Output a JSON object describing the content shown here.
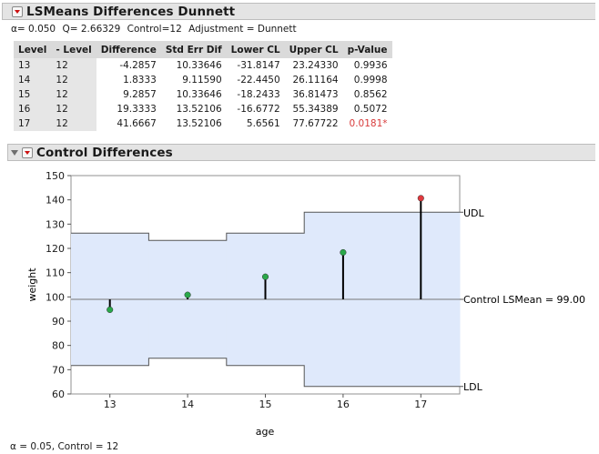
{
  "lsmeans": {
    "title": "LSMeans Differences Dunnett",
    "info": {
      "alpha": "α=  0.050",
      "q": "Q=  2.66329",
      "control": "Control=12",
      "adjustment": "Adjustment = Dunnett"
    },
    "columns": [
      "Level",
      "- Level",
      "Difference",
      "Std Err Dif",
      "Lower CL",
      "Upper CL",
      "p-Value"
    ],
    "rows": [
      {
        "level": "13",
        "minus_level": "12",
        "difference": "-4.2857",
        "std_err": "10.33646",
        "lower_cl": "-31.8147",
        "upper_cl": "23.24330",
        "p_value": "0.9936",
        "significant": false
      },
      {
        "level": "14",
        "minus_level": "12",
        "difference": "1.8333",
        "std_err": "9.11590",
        "lower_cl": "-22.4450",
        "upper_cl": "26.11164",
        "p_value": "0.9998",
        "significant": false
      },
      {
        "level": "15",
        "minus_level": "12",
        "difference": "9.2857",
        "std_err": "10.33646",
        "lower_cl": "-18.2433",
        "upper_cl": "36.81473",
        "p_value": "0.8562",
        "significant": false
      },
      {
        "level": "16",
        "minus_level": "12",
        "difference": "19.3333",
        "std_err": "13.52106",
        "lower_cl": "-16.6772",
        "upper_cl": "55.34389",
        "p_value": "0.5072",
        "significant": false
      },
      {
        "level": "17",
        "minus_level": "12",
        "difference": "41.6667",
        "std_err": "13.52106",
        "lower_cl": "5.6561",
        "upper_cl": "77.67722",
        "p_value": "0.0181*",
        "significant": true
      }
    ]
  },
  "control_diff": {
    "title": "Control Differences",
    "footer": "α = 0.05, Control = 12"
  },
  "colors": {
    "band_fill": "#dfe9fb",
    "point_green": "#2aa84a",
    "point_red": "#e0393e",
    "header_bg": "#e4e4e4"
  },
  "chart_data": {
    "type": "scatter",
    "title": "Control Differences",
    "xlabel": "age",
    "ylabel": "weight",
    "categories": [
      "13",
      "14",
      "15",
      "16",
      "17"
    ],
    "ylim": [
      60,
      150
    ],
    "yticks": [
      60,
      70,
      80,
      90,
      100,
      110,
      120,
      130,
      140,
      150
    ],
    "control_mean": 99.0,
    "control_label": "Control LSMean = 99.00",
    "udl_label": "UDL",
    "ldl_label": "LDL",
    "means": [
      94.71,
      100.83,
      108.29,
      118.33,
      140.67
    ],
    "significant": [
      false,
      false,
      false,
      false,
      true
    ],
    "udl": [
      126.3,
      123.3,
      126.3,
      134.9,
      134.9
    ],
    "ldl": [
      71.7,
      74.7,
      71.7,
      63.1,
      63.1
    ]
  }
}
